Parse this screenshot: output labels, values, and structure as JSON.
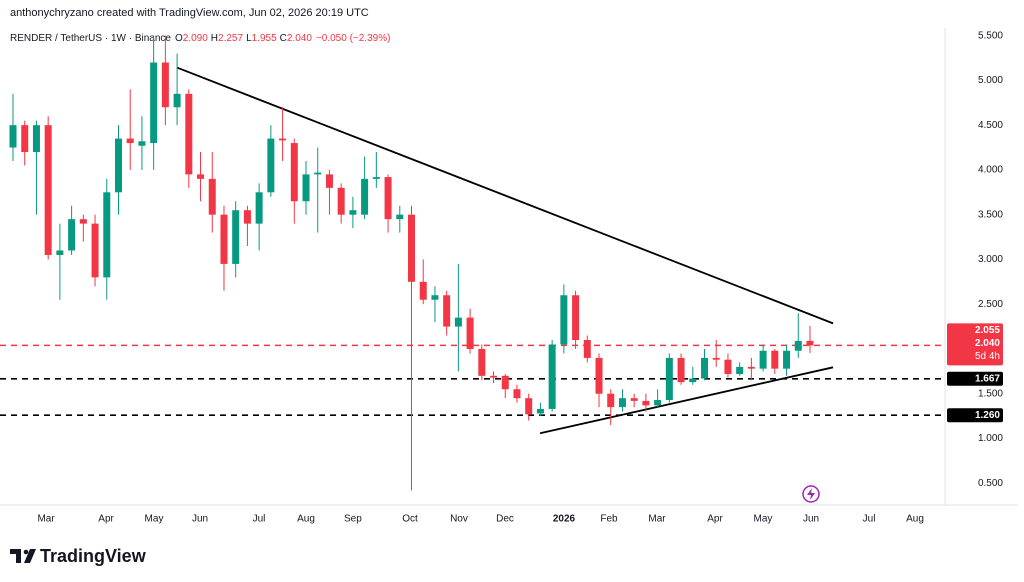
{
  "chart_data": {
    "type": "candlestick",
    "title": "anthonychryzano created with TradingView.com, Jun 02, 2026 20:19 UTC",
    "legend": {
      "symbol": "RENDER / TetherUS · 1W · Binance",
      "items": [
        {
          "key": "O",
          "value": "2.090"
        },
        {
          "key": "H",
          "value": "2.257"
        },
        {
          "key": "L",
          "value": "1.955"
        },
        {
          "key": "C",
          "value": "2.040"
        }
      ],
      "change": "−0.050 (−2.39%)"
    },
    "up_color": "#089981",
    "down_color": "#f23645",
    "series": [
      {
        "name": "RENDER / TetherUS",
        "open": [
          4.25,
          4.5,
          4.2,
          4.5,
          3.05,
          3.1,
          3.45,
          3.4,
          2.8,
          3.75,
          4.35,
          4.27,
          4.3,
          5.2,
          4.7,
          4.85,
          3.95,
          3.9,
          3.5,
          2.95,
          3.55,
          3.4,
          3.75,
          4.35,
          4.3,
          3.65,
          3.95,
          3.95,
          3.8,
          3.5,
          3.5,
          3.9,
          3.92,
          3.45,
          3.5,
          2.75,
          2.55,
          2.6,
          2.25,
          2.35,
          2.0,
          1.7,
          1.7,
          1.55,
          1.45,
          1.28,
          1.33,
          2.05,
          2.6,
          2.1,
          1.9,
          1.5,
          1.35,
          1.45,
          1.42,
          1.37,
          1.43,
          1.9,
          1.63,
          1.67,
          1.9,
          1.88,
          1.72,
          1.8,
          1.78,
          1.98,
          1.78,
          1.98,
          2.09
        ],
        "high": [
          4.85,
          4.55,
          4.55,
          4.6,
          3.4,
          3.6,
          3.5,
          3.5,
          3.9,
          4.5,
          4.9,
          4.6,
          5.5,
          5.5,
          5.3,
          4.9,
          4.2,
          4.2,
          3.6,
          3.65,
          3.6,
          3.85,
          4.5,
          4.7,
          4.35,
          4.1,
          4.25,
          4.0,
          3.85,
          3.7,
          4.15,
          4.2,
          3.95,
          3.6,
          3.6,
          3.0,
          2.7,
          2.65,
          2.95,
          2.45,
          2.05,
          1.75,
          1.72,
          1.6,
          1.5,
          1.4,
          2.1,
          2.72,
          2.65,
          2.15,
          1.95,
          1.55,
          1.55,
          1.5,
          1.5,
          1.55,
          1.95,
          1.95,
          1.8,
          2.0,
          2.1,
          1.95,
          1.85,
          1.9,
          2.05,
          2.0,
          2.05,
          2.4,
          2.257
        ],
        "low": [
          4.1,
          4.05,
          3.5,
          3.0,
          2.55,
          3.05,
          3.2,
          2.7,
          2.55,
          3.5,
          4.0,
          4.0,
          4.0,
          4.5,
          4.5,
          3.8,
          3.65,
          3.3,
          2.65,
          2.8,
          3.15,
          3.1,
          3.7,
          4.1,
          3.4,
          3.5,
          3.3,
          3.5,
          3.4,
          3.35,
          3.45,
          3.8,
          3.3,
          3.3,
          0.42,
          2.5,
          2.3,
          2.15,
          1.75,
          1.95,
          1.65,
          1.62,
          1.45,
          1.4,
          1.2,
          1.25,
          1.3,
          1.95,
          2.0,
          1.85,
          1.35,
          1.15,
          1.3,
          1.35,
          1.3,
          1.35,
          1.4,
          1.6,
          1.6,
          1.65,
          1.8,
          1.68,
          1.7,
          1.65,
          1.75,
          1.72,
          1.7,
          1.9,
          1.955
        ],
        "close": [
          4.5,
          4.2,
          4.5,
          3.05,
          3.1,
          3.45,
          3.4,
          2.8,
          3.75,
          4.35,
          4.3,
          4.32,
          5.2,
          4.7,
          4.85,
          3.95,
          3.9,
          3.5,
          2.95,
          3.55,
          3.4,
          3.75,
          4.35,
          4.33,
          3.65,
          3.95,
          3.97,
          3.8,
          3.5,
          3.55,
          3.9,
          3.92,
          3.45,
          3.5,
          2.75,
          2.55,
          2.6,
          2.25,
          2.35,
          2.0,
          1.7,
          1.68,
          1.55,
          1.45,
          1.27,
          1.33,
          2.05,
          2.6,
          2.1,
          1.9,
          1.5,
          1.35,
          1.45,
          1.42,
          1.37,
          1.43,
          1.9,
          1.63,
          1.67,
          1.9,
          1.88,
          1.72,
          1.8,
          1.78,
          1.98,
          1.78,
          1.98,
          2.09,
          2.04
        ]
      }
    ],
    "xlim": [
      -1.11,
      79.52
    ],
    "xticks": [
      {
        "value": 2.82,
        "label": "Mar"
      },
      {
        "value": 7.94,
        "label": "Apr"
      },
      {
        "value": 12.03,
        "label": "May"
      },
      {
        "value": 15.96,
        "label": "Jun"
      },
      {
        "value": 20.99,
        "label": "Jul"
      },
      {
        "value": 25.0,
        "label": "Aug"
      },
      {
        "value": 29.0,
        "label": "Sep"
      },
      {
        "value": 33.87,
        "label": "Oct"
      },
      {
        "value": 38.05,
        "label": "Nov"
      },
      {
        "value": 41.98,
        "label": "Dec"
      },
      {
        "value": 47.01,
        "label": "2026"
      },
      {
        "value": 50.85,
        "label": "Feb"
      },
      {
        "value": 54.95,
        "label": "Mar"
      },
      {
        "value": 59.9,
        "label": "Apr"
      },
      {
        "value": 63.99,
        "label": "May"
      },
      {
        "value": 68.09,
        "label": "Jun"
      },
      {
        "value": 73.04,
        "label": "Jul"
      },
      {
        "value": 76.96,
        "label": "Aug"
      }
    ],
    "ylim": [
      0.257,
      5.898
    ],
    "yticks": [
      {
        "value": 0.5,
        "label": "0.500"
      },
      {
        "value": 1.0,
        "label": "1.000"
      },
      {
        "value": 1.5,
        "label": "1.500"
      },
      {
        "value": 2.0,
        "label": "2.000"
      },
      {
        "value": 2.5,
        "label": "2.500"
      },
      {
        "value": 3.0,
        "label": "3.000"
      },
      {
        "value": 3.5,
        "label": "3.500"
      },
      {
        "value": 4.0,
        "label": "4.000"
      },
      {
        "value": 4.5,
        "label": "4.500"
      },
      {
        "value": 5.0,
        "label": "5.000"
      },
      {
        "value": 5.5,
        "label": "5.500"
      }
    ],
    "grid": false,
    "trendlines": [
      {
        "x": [
          13.99,
          69.97
        ],
        "y": [
          5.143,
          2.286
        ],
        "color": "#000000"
      },
      {
        "x": [
          44.97,
          69.97
        ],
        "y": [
          1.058,
          1.795
        ],
        "color": "#000000"
      }
    ],
    "hlines": [
      {
        "value": 2.04,
        "color": "#f23645"
      },
      {
        "value": 1.667,
        "label": "1.667",
        "color": "#000000"
      },
      {
        "value": 1.26,
        "label": "1.260",
        "color": "#000000"
      }
    ],
    "price_box": [
      "2.055",
      "2.040",
      "5d 4h"
    ],
    "footer": "TradingView"
  }
}
